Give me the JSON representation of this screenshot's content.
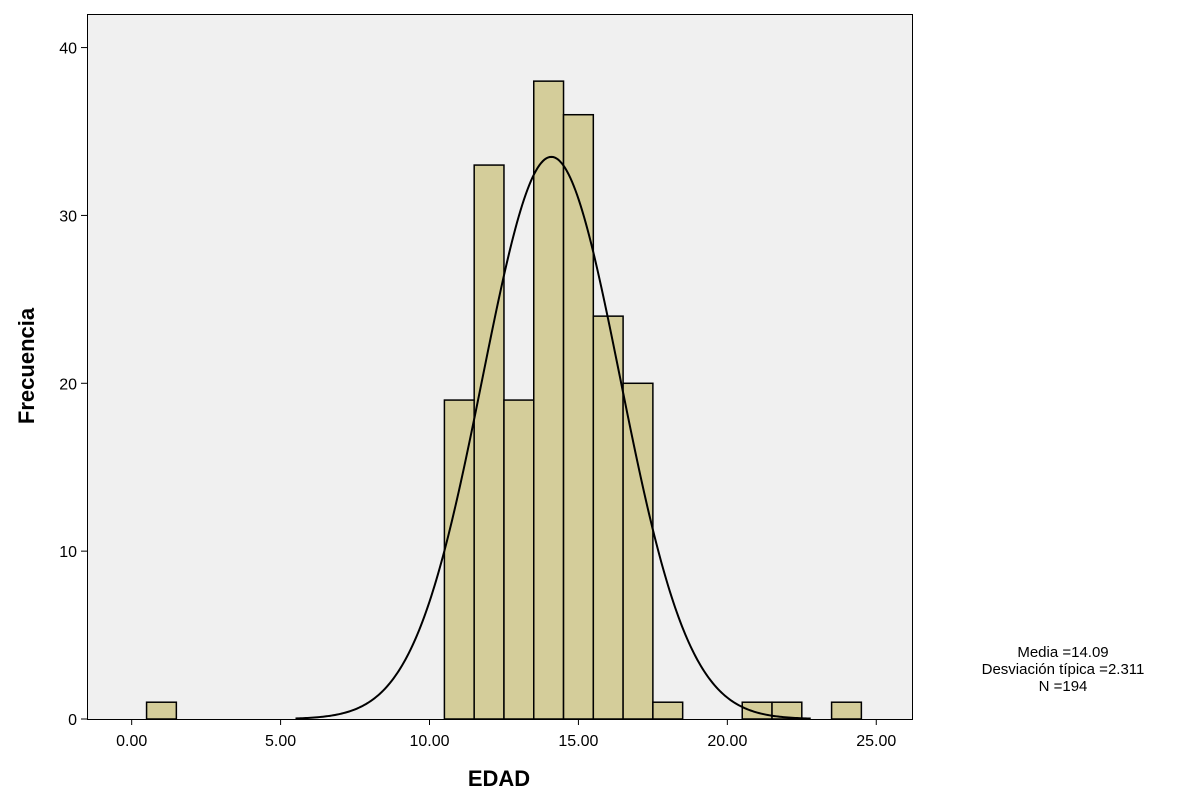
{
  "chart_data": {
    "type": "bar",
    "subtype": "histogram-with-normal-curve",
    "xlabel": "EDAD",
    "ylabel": "Frecuencia",
    "xlim": [
      -1.5,
      26.2
    ],
    "ylim": [
      0,
      42
    ],
    "x_ticks": [
      0,
      5,
      10,
      15,
      20,
      25
    ],
    "x_tick_labels": [
      "0.00",
      "5.00",
      "10.00",
      "15.00",
      "20.00",
      "25.00"
    ],
    "y_ticks": [
      0,
      10,
      20,
      30,
      40
    ],
    "y_tick_labels": [
      "0",
      "10",
      "20",
      "30",
      "40"
    ],
    "bin_width": 1,
    "bins": [
      {
        "center": 1,
        "count": 1
      },
      {
        "center": 11,
        "count": 19
      },
      {
        "center": 12,
        "count": 33
      },
      {
        "center": 13,
        "count": 19
      },
      {
        "center": 14,
        "count": 38
      },
      {
        "center": 15,
        "count": 36
      },
      {
        "center": 16,
        "count": 24
      },
      {
        "center": 17,
        "count": 20
      },
      {
        "center": 18,
        "count": 1
      },
      {
        "center": 21,
        "count": 1
      },
      {
        "center": 22,
        "count": 1
      },
      {
        "center": 24,
        "count": 1
      }
    ],
    "normal_curve": {
      "mean": 14.09,
      "std": 2.311,
      "n": 194
    },
    "grid": false,
    "colors": {
      "bar_fill": "#d4cd9a",
      "bar_stroke": "#000000",
      "plot_bg": "#f0f0f0",
      "curve": "#000000"
    }
  },
  "stats": {
    "media": "Media =14.09",
    "desviacion": "Desviación típica =2.311",
    "n": "N =194"
  }
}
